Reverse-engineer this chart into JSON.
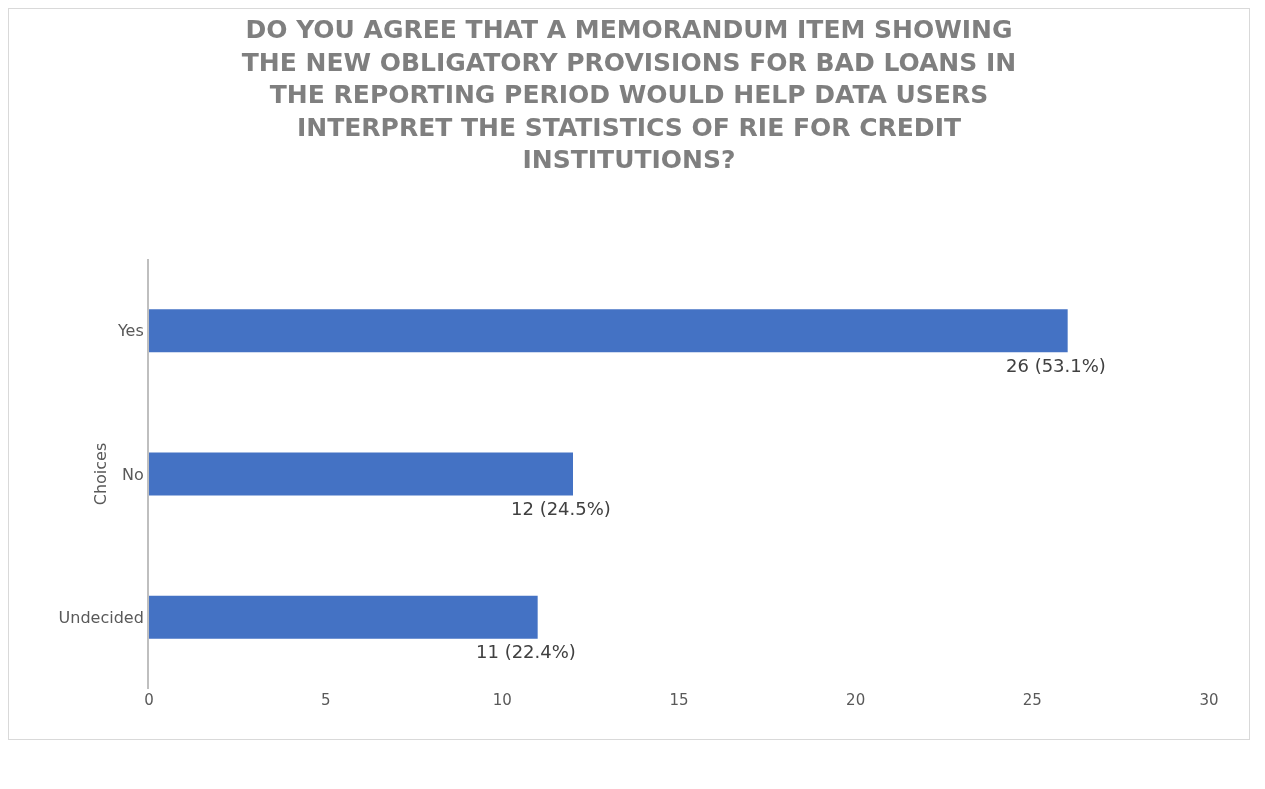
{
  "chart_data": {
    "type": "bar",
    "orientation": "horizontal",
    "title": "DO YOU AGREE THAT A MEMORANDUM ITEM SHOWING THE NEW OBLIGATORY PROVISIONS FOR BAD LOANS IN THE REPORTING PERIOD WOULD HELP DATA USERS INTERPRET THE STATISTICS OF RIE FOR CREDIT INSTITUTIONS?",
    "ylabel": "Choices",
    "categories": [
      "Yes",
      "No",
      "Undecided"
    ],
    "values": [
      26,
      12,
      11
    ],
    "value_labels": [
      "26 (53.1%)",
      "12 (24.5%)",
      "11 (22.4%)"
    ],
    "color": "#4472c4",
    "xlim": [
      0,
      30
    ],
    "xticks": [
      0,
      5,
      10,
      15,
      20,
      25,
      30
    ],
    "grid": false,
    "legend": false
  }
}
